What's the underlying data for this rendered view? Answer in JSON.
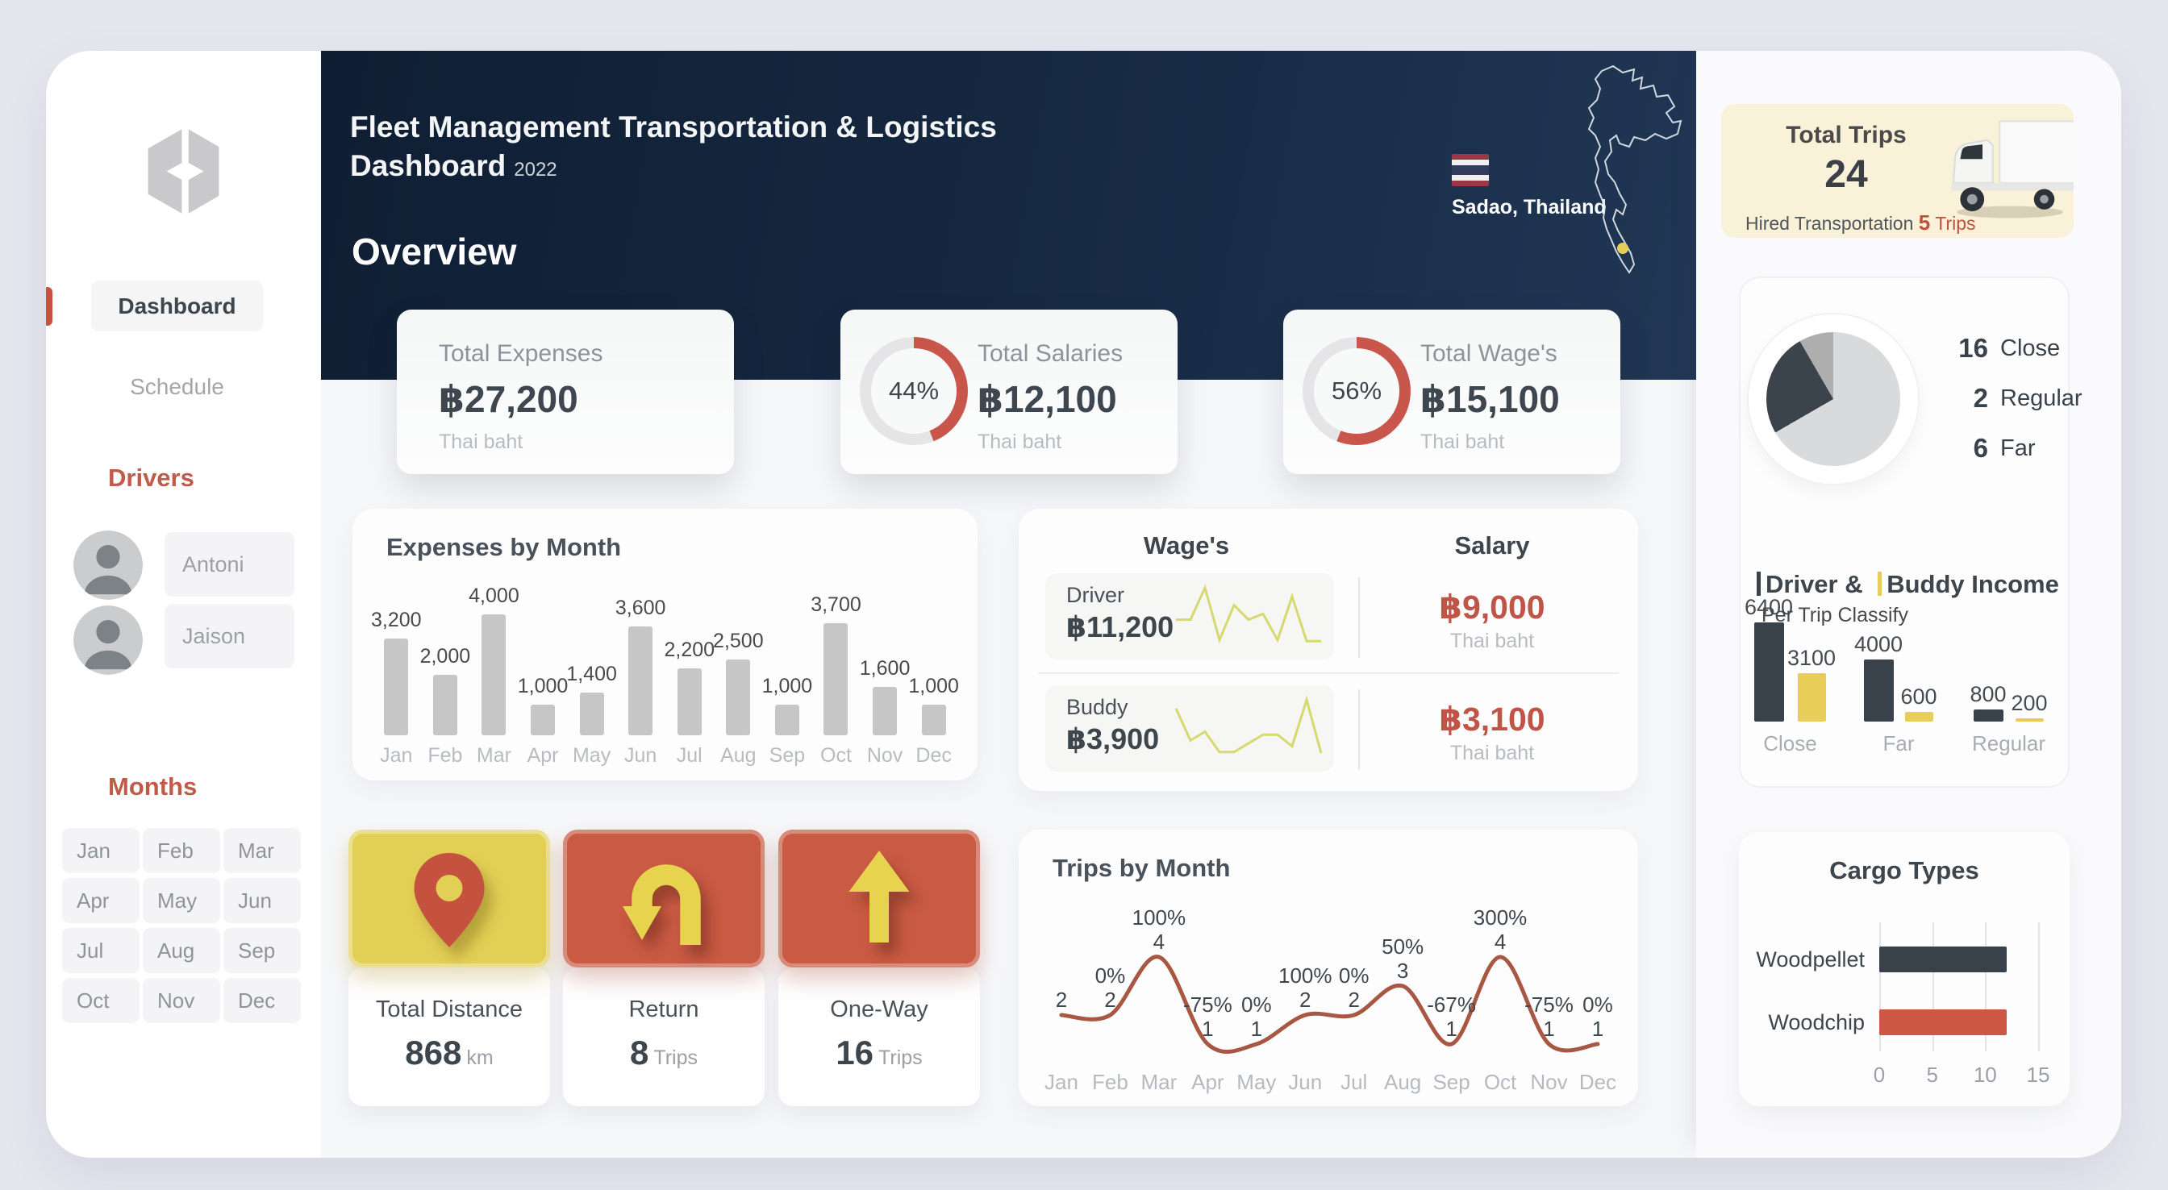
{
  "header": {
    "title_line1": "Fleet Management Transportation & Logistics",
    "title_line2": "Dashboard",
    "year": "2022",
    "section": "Overview",
    "location": "Sadao, Thailand"
  },
  "sidebar": {
    "nav": [
      {
        "label": "Dashboard",
        "active": true
      },
      {
        "label": "Schedule",
        "active": false
      }
    ],
    "drivers_heading": "Drivers",
    "drivers": [
      {
        "name": "Antoni"
      },
      {
        "name": "Jaison"
      }
    ],
    "months_heading": "Months",
    "months": [
      "Jan",
      "Feb",
      "Mar",
      "Apr",
      "May",
      "Jun",
      "Jul",
      "Aug",
      "Sep",
      "Oct",
      "Nov",
      "Dec"
    ]
  },
  "kpis": [
    {
      "label": "Total Expenses",
      "value": "฿27,200",
      "unit": "Thai baht",
      "percent": null
    },
    {
      "label": "Total Salaries",
      "value": "฿12,100",
      "unit": "Thai baht",
      "percent": "44%"
    },
    {
      "label": "Total Wage's",
      "value": "฿15,100",
      "unit": "Thai baht",
      "percent": "56%"
    }
  ],
  "wages_panel": {
    "col1_title": "Wage's",
    "col2_title": "Salary",
    "rows": [
      {
        "name": "Driver",
        "wage": "฿11,200",
        "salary": "฿9,000",
        "unit": "Thai baht"
      },
      {
        "name": "Buddy",
        "wage": "฿3,900",
        "salary": "฿3,100",
        "unit": "Thai baht"
      }
    ]
  },
  "tiles": [
    {
      "label": "Total Distance",
      "value": "868",
      "unit": "km",
      "icon": "location-pin"
    },
    {
      "label": "Return",
      "value": "8",
      "unit": "Trips",
      "icon": "u-turn-arrow"
    },
    {
      "label": "One-Way",
      "value": "16",
      "unit": "Trips",
      "icon": "up-arrow"
    }
  ],
  "total_trips_card": {
    "title": "Total Trips",
    "value": "24",
    "sub_label": "Hired Transportation",
    "sub_value": "5",
    "sub_unit": "Trips"
  },
  "classify_panel": {
    "legend": [
      {
        "value": "16",
        "label": "Close"
      },
      {
        "value": "2",
        "label": "Regular"
      },
      {
        "value": "6",
        "label": "Far"
      }
    ],
    "income_title_part1": "Driver &",
    "income_title_part2": "Buddy Income",
    "income_subtitle": "Per Trip Classify"
  },
  "colors": {
    "accent_red": "#c4523f",
    "donut_red": "#c9564a",
    "money_red": "#bf5447",
    "line_red": "#a85743",
    "tile_yellow": "#e2cf55",
    "tile_red": "#c95a43",
    "spark_yellow": "#d6d96d",
    "dark_slate": "#39424b",
    "bar_gray": "#c6c6c6",
    "buddy_yellow": "#e8ce58",
    "pie_light": "#d9dadb",
    "pie_dark": "#3b434c",
    "pie_medium": "#aeaeae"
  },
  "chart_data": [
    {
      "id": "expenses_by_month",
      "type": "bar",
      "title": "Expenses by Month",
      "categories": [
        "Jan",
        "Feb",
        "Mar",
        "Apr",
        "May",
        "Jun",
        "Jul",
        "Aug",
        "Sep",
        "Oct",
        "Nov",
        "Dec"
      ],
      "values": [
        3200,
        2000,
        4000,
        1000,
        1400,
        3600,
        2200,
        2500,
        1000,
        3700,
        1600,
        1000
      ],
      "value_labels": [
        "3,200",
        "2,000",
        "4,000",
        "1,000",
        "1,400",
        "3,600",
        "2,200",
        "2,500",
        "1,000",
        "3,700",
        "1,600",
        "1,000"
      ],
      "xlabel": "",
      "ylabel": "",
      "ylim": [
        0,
        4000
      ],
      "grid": false,
      "bar_color": "#c6c6c6"
    },
    {
      "id": "trips_by_month",
      "type": "line",
      "title": "Trips by Month",
      "categories": [
        "Jan",
        "Feb",
        "Mar",
        "Apr",
        "May",
        "Jun",
        "Jul",
        "Aug",
        "Sep",
        "Oct",
        "Nov",
        "Dec"
      ],
      "values": [
        2,
        2,
        4,
        1,
        1,
        2,
        2,
        3,
        1,
        4,
        1,
        1
      ],
      "count_labels": [
        "2",
        "2",
        "4",
        "1",
        "1",
        "2",
        "2",
        "3",
        "1",
        "4",
        "1",
        "1"
      ],
      "change_labels": [
        null,
        "0%",
        "100%",
        "-75%",
        "0%",
        "100%",
        "0%",
        "50%",
        "-67%",
        "300%",
        "-75%",
        "0%"
      ],
      "ylim": [
        0,
        4
      ],
      "grid": false,
      "line_color": "#a85743"
    },
    {
      "id": "trip_classification",
      "type": "pie",
      "slices": [
        {
          "label": "Close",
          "value": 16,
          "color": "#d9dadb"
        },
        {
          "label": "Far",
          "value": 6,
          "color": "#3b434c"
        },
        {
          "label": "Regular",
          "value": 2,
          "color": "#aeaeae"
        }
      ]
    },
    {
      "id": "driver_buddy_income",
      "type": "bar",
      "title": "Driver & Buddy Income",
      "subtitle": "Per Trip Classify",
      "categories": [
        "Close",
        "Far",
        "Regular"
      ],
      "series": [
        {
          "name": "Driver",
          "color": "#39424b",
          "values": [
            6400,
            4000,
            800
          ],
          "value_labels": [
            "6400",
            "4000",
            "800"
          ]
        },
        {
          "name": "Buddy",
          "color": "#e8ce58",
          "values": [
            3100,
            600,
            200
          ],
          "value_labels": [
            "3100",
            "600",
            "200"
          ]
        }
      ],
      "ylim": [
        0,
        6400
      ],
      "grid": false
    },
    {
      "id": "cargo_types",
      "type": "bar",
      "title": "Cargo Types",
      "orientation": "horizontal",
      "categories": [
        "Woodpellet",
        "Woodchip"
      ],
      "values": [
        12,
        12
      ],
      "colors": [
        "#39424b",
        "#cb5744"
      ],
      "ticks": [
        0,
        5,
        10,
        15
      ],
      "tick_labels": [
        "0",
        "5",
        "10",
        "15"
      ],
      "xlim": [
        0,
        15
      ],
      "grid": true
    },
    {
      "id": "driver_wage_sparkline",
      "type": "line",
      "values": [
        4.5,
        4.5,
        10,
        1,
        7,
        4.5,
        5.5,
        1,
        8.5,
        0.8,
        0.8
      ],
      "line_color": "#d6d96d"
    },
    {
      "id": "buddy_wage_sparkline",
      "type": "line",
      "values": [
        8.5,
        3,
        4.5,
        1,
        1,
        2.5,
        4,
        4,
        2,
        10,
        0.8
      ],
      "line_color": "#d6d96d"
    }
  ]
}
